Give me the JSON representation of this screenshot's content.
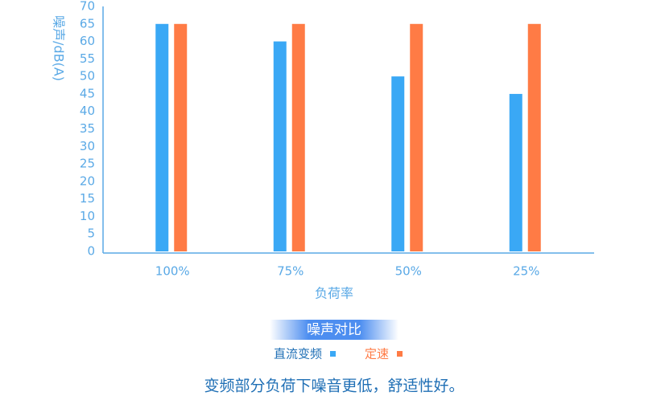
{
  "chart_data": {
    "type": "bar",
    "title": "噪声对比",
    "y_label": "噪声/dB(A)",
    "x_label": "负荷率",
    "caption": "变频部分负荷下噪音更低，舒适性好。",
    "categories": [
      "100%",
      "75%",
      "50%",
      "25%"
    ],
    "series": [
      {
        "name": "直流变频",
        "color": "#3aa8f5",
        "values": [
          65,
          60,
          50,
          45
        ]
      },
      {
        "name": "定速",
        "color": "#ff7b45",
        "values": [
          65,
          65,
          65,
          65
        ]
      }
    ],
    "ylim": [
      0,
      70
    ],
    "yticks": [
      0,
      5,
      10,
      15,
      20,
      25,
      30,
      35,
      40,
      45,
      50,
      55,
      60,
      65,
      70
    ],
    "grid": false
  }
}
